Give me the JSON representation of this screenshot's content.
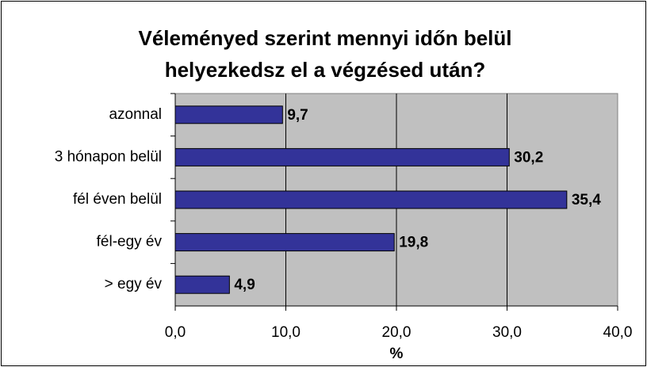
{
  "chart_data": {
    "type": "barh",
    "title": [
      "Véleményed szerint mennyi időn belül",
      "helyezkedsz el a végzésed után?"
    ],
    "xlabel": "%",
    "categories": [
      "azonnal",
      "3 hónapon belül",
      "fél éven belül",
      "fél-egy év",
      "> egy év"
    ],
    "values": [
      9.7,
      30.2,
      35.4,
      19.8,
      4.9
    ],
    "value_labels": [
      "9,7",
      "30,2",
      "35,4",
      "19,8",
      "4,9"
    ],
    "color": "#333399",
    "xlim": [
      0,
      40
    ],
    "xticks": [
      {
        "value": 0,
        "label": "0,0"
      },
      {
        "value": 10,
        "label": "10,0"
      },
      {
        "value": 20,
        "label": "20,0"
      },
      {
        "value": 30,
        "label": "30,0"
      },
      {
        "value": 40,
        "label": "40,0"
      }
    ],
    "grid": true
  }
}
